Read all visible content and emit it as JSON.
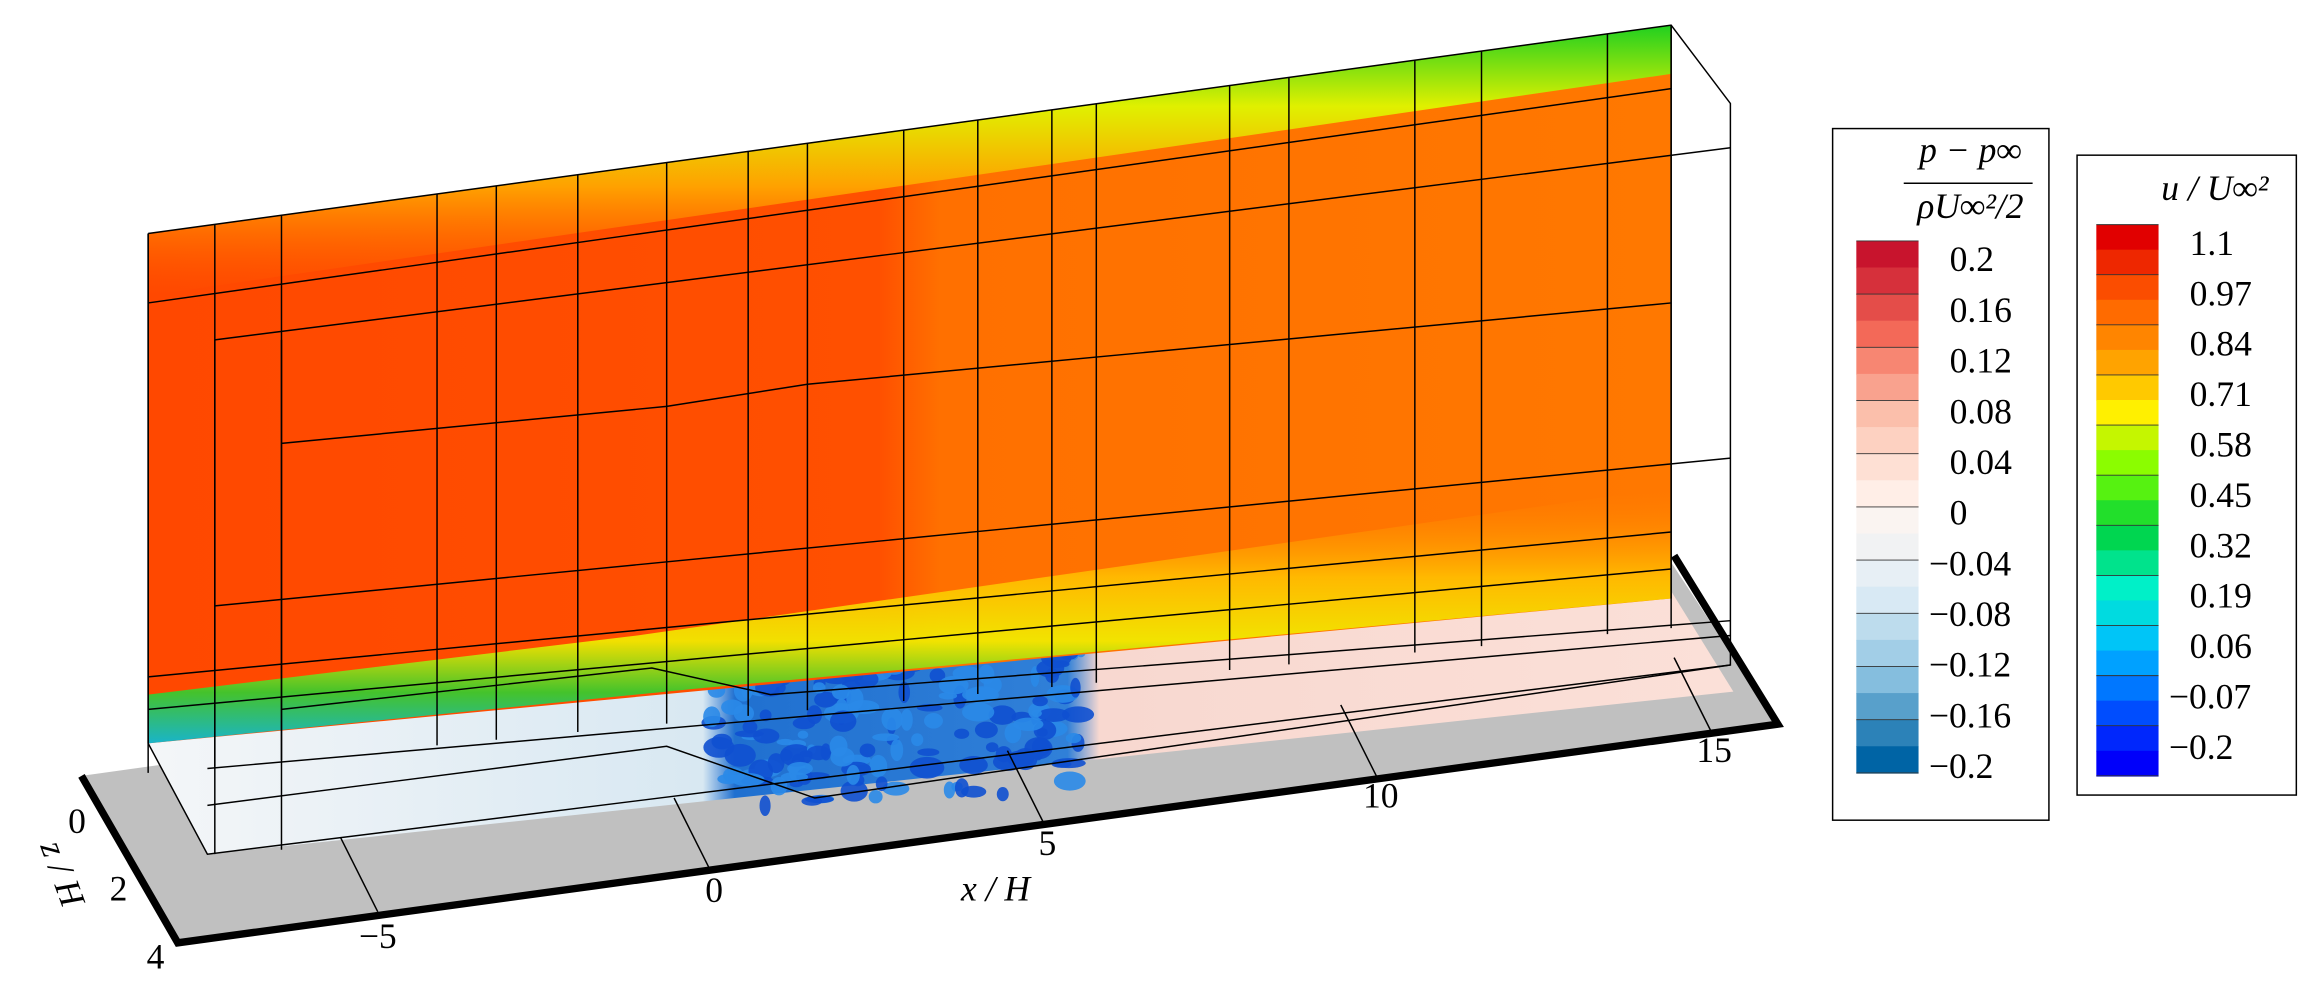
{
  "axes": {
    "x_label": "x / H",
    "z_label": "z / H",
    "x_ticks": [
      "−5",
      "0",
      "5",
      "10",
      "15"
    ],
    "z_ticks": [
      "0",
      "2",
      "4"
    ]
  },
  "pressure_legend": {
    "numerator": "p − p∞",
    "denominator": "ρU∞²/2",
    "ticks": [
      "0.2",
      "0.16",
      "0.12",
      "0.08",
      "0.04",
      "0",
      "−0.04",
      "−0.08",
      "−0.12",
      "−0.16",
      "−0.2"
    ]
  },
  "velocity_legend": {
    "title": "u / U∞²",
    "ticks": [
      "1.1",
      "0.97",
      "0.84",
      "0.71",
      "0.58",
      "0.45",
      "0.32",
      "0.19",
      "0.06",
      "−0.07",
      "−0.2"
    ]
  }
}
